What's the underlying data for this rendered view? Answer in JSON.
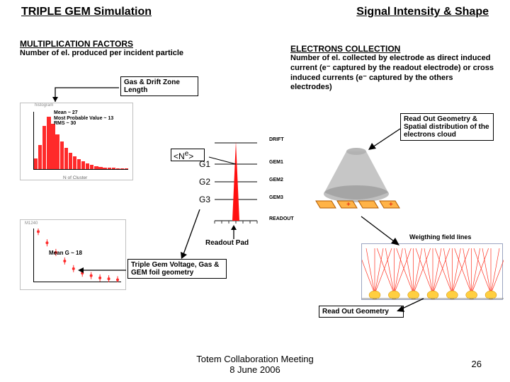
{
  "titles": {
    "left": "TRIPLE GEM Simulation",
    "right": "Signal Intensity & Shape"
  },
  "multiplication": {
    "heading": "MULTIPLICATION FACTORS",
    "subtitle": "Number of el. produced per incident particle",
    "gas_drift_box": "Gas & Drift Zone Length",
    "hist1": {
      "mean": "Mean ~ 27",
      "mpv": "Most Probable Value ~ 13",
      "rms": "RMS ~ 30",
      "x_label": "N of Cluster",
      "data": [
        18,
        42,
        75,
        90,
        78,
        60,
        48,
        36,
        28,
        22,
        17,
        13,
        10,
        7,
        5,
        4,
        3,
        2,
        2,
        1,
        1,
        1
      ],
      "ymax": 100,
      "bar_color": "#ff2a2a",
      "border_color": "#c0c0c0"
    },
    "hist2": {
      "data": [
        85,
        30,
        12,
        5,
        2,
        1,
        0.6,
        0.3,
        0.2,
        0.1
      ],
      "ymax": 100,
      "mean_g": "Mean G ~ 18",
      "marker_color": "#ff2a2a"
    },
    "triple_gem_box": "Triple Gem Voltage, Gas & GEM foil geometry"
  },
  "gem_stack": {
    "ne_label": "<Ne>",
    "ne_label_sup": "e",
    "g1": "G1",
    "g2": "G2",
    "g3": "G3",
    "readout_pad": "Readout Pad",
    "labels": {
      "drift": "DRIFT",
      "gem1": "GEM1",
      "gem2": "GEM2",
      "gem3": "GEM3",
      "readout": "READOUT"
    },
    "peak_color": "#ff0000",
    "tick_color": "#333333"
  },
  "electrons": {
    "heading": "ELECTRONS COLLECTION",
    "body": "Number of el. collected by electrode as direct induced current (e⁻ captured by the readout electrode) or cross induced currents (e⁻ captured by the others electrodes)",
    "readout_geom_box": "Read Out Geometry & Spatial distribution of the electrons cloud",
    "weighting": "Weigthing field lines",
    "readout_box2": "Read Out Geometry",
    "cloud": {
      "cone_color": "#b0b0b0",
      "pad_color": "#ffb347",
      "pad_border": "#b05a00",
      "pad_count": 4
    },
    "field_plot": {
      "line_color": "#ff3020",
      "blob_color": "#ffcf40",
      "border_color": "#9aa4c0"
    }
  },
  "footer": {
    "text1": "Totem Collaboration Meeting",
    "text2": "8 June 2006",
    "page": "26"
  }
}
